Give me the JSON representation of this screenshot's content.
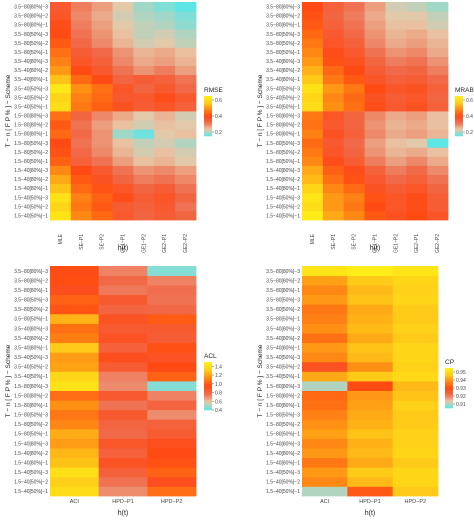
{
  "palette": [
    "#5ee6e6",
    "#e8c8a8",
    "#f06a4a",
    "#ff4a14",
    "#ff8a14",
    "#ffd018",
    "#fff018"
  ],
  "chart_data": [
    {
      "type": "heatmap",
      "xlabel": "h(t)",
      "ylabel": "T − n [ F P % ] − Scheme",
      "x_categories": [
        "MLE",
        "SE−P1",
        "SE−P2",
        "GE1−P1",
        "GE1−P2",
        "GE2−P1",
        "GE2−P2"
      ],
      "y_categories": [
        "1.5−40[50%]−1",
        "1.5−40[50%]−2",
        "1.5−40[50%]−3",
        "1.5−40[80%]−1",
        "1.5−40[80%]−2",
        "1.5−40[80%]−3",
        "1.5−80[50%]−1",
        "1.5−80[50%]−2",
        "1.5−80[50%]−3",
        "1.5−80[80%]−1",
        "1.5−80[80%]−2",
        "1.5−80[80%]−3",
        "3.5−40[50%]−1",
        "3.5−40[50%]−2",
        "3.5−40[50%]−3",
        "3.5−40[80%]−1",
        "3.5−40[80%]−2",
        "3.5−40[80%]−3",
        "3.5−80[50%]−1",
        "3.5−80[50%]−2",
        "3.5−80[50%]−3",
        "3.5−80[80%]−1",
        "3.5−80[80%]−2",
        "3.5−80[80%]−3"
      ],
      "legend": {
        "title": "RMSE",
        "min": 0.15,
        "max": 0.65,
        "ticks": [
          0.2,
          0.4,
          0.6
        ]
      },
      "values": [
        [
          0.62,
          0.48,
          0.44,
          0.36,
          0.33,
          0.35,
          0.33
        ],
        [
          0.58,
          0.46,
          0.42,
          0.35,
          0.34,
          0.36,
          0.31
        ],
        [
          0.61,
          0.47,
          0.43,
          0.39,
          0.35,
          0.37,
          0.33
        ],
        [
          0.55,
          0.44,
          0.41,
          0.37,
          0.33,
          0.35,
          0.31
        ],
        [
          0.52,
          0.42,
          0.38,
          0.33,
          0.3,
          0.31,
          0.29
        ],
        [
          0.48,
          0.4,
          0.36,
          0.31,
          0.28,
          0.29,
          0.27
        ],
        [
          0.43,
          0.34,
          0.31,
          0.27,
          0.24,
          0.25,
          0.23
        ],
        [
          0.41,
          0.32,
          0.29,
          0.25,
          0.22,
          0.24,
          0.22
        ],
        [
          0.4,
          0.31,
          0.28,
          0.24,
          0.21,
          0.22,
          0.2
        ],
        [
          0.44,
          0.32,
          0.28,
          0.19,
          0.16,
          0.23,
          0.24
        ],
        [
          0.42,
          0.31,
          0.27,
          0.24,
          0.22,
          0.24,
          0.23
        ],
        [
          0.45,
          0.33,
          0.29,
          0.26,
          0.23,
          0.25,
          0.22
        ],
        [
          0.6,
          0.46,
          0.43,
          0.38,
          0.35,
          0.37,
          0.34
        ],
        [
          0.58,
          0.47,
          0.44,
          0.36,
          0.36,
          0.39,
          0.36
        ],
        [
          0.63,
          0.49,
          0.45,
          0.37,
          0.33,
          0.36,
          0.32
        ],
        [
          0.55,
          0.44,
          0.4,
          0.33,
          0.35,
          0.34,
          0.31
        ],
        [
          0.5,
          0.4,
          0.36,
          0.31,
          0.28,
          0.3,
          0.27
        ],
        [
          0.47,
          0.37,
          0.34,
          0.29,
          0.26,
          0.27,
          0.25
        ],
        [
          0.45,
          0.35,
          0.32,
          0.28,
          0.25,
          0.26,
          0.24
        ],
        [
          0.42,
          0.32,
          0.29,
          0.25,
          0.22,
          0.23,
          0.21
        ],
        [
          0.4,
          0.31,
          0.28,
          0.24,
          0.21,
          0.22,
          0.2
        ],
        [
          0.39,
          0.3,
          0.27,
          0.23,
          0.21,
          0.2,
          0.18
        ],
        [
          0.37,
          0.29,
          0.26,
          0.22,
          0.2,
          0.19,
          0.17
        ],
        [
          0.36,
          0.3,
          0.27,
          0.23,
          0.19,
          0.17,
          0.15
        ]
      ]
    },
    {
      "type": "heatmap",
      "xlabel": "h(t)",
      "ylabel": "T − n [ F P % ] − Scheme",
      "x_categories": [
        "MLE",
        "SE−P1",
        "SE−P2",
        "GE1−P1",
        "GE1−P2",
        "GE2−P1",
        "GE2−P2"
      ],
      "y_categories": [
        "1.5−40[50%]−1",
        "1.5−40[50%]−2",
        "1.5−40[50%]−3",
        "1.5−40[80%]−1",
        "1.5−40[80%]−2",
        "1.5−40[80%]−3",
        "1.5−80[50%]−1",
        "1.5−80[50%]−2",
        "1.5−80[50%]−3",
        "1.5−80[80%]−1",
        "1.5−80[80%]−2",
        "1.5−80[80%]−3",
        "3.5−40[50%]−1",
        "3.5−40[50%]−2",
        "3.5−40[50%]−3",
        "3.5−40[80%]−1",
        "3.5−40[80%]−2",
        "3.5−40[80%]−3",
        "3.5−80[50%]−1",
        "3.5−80[50%]−2",
        "3.5−80[50%]−3",
        "3.5−80[80%]−1",
        "3.5−80[80%]−2",
        "3.5−80[80%]−3"
      ],
      "legend": {
        "title": "MRAB",
        "min": 0.15,
        "max": 0.65,
        "ticks": [
          0.2,
          0.4,
          0.6
        ]
      },
      "values": [
        [
          0.64,
          0.52,
          0.48,
          0.42,
          0.38,
          0.4,
          0.37
        ],
        [
          0.6,
          0.5,
          0.46,
          0.4,
          0.37,
          0.39,
          0.35
        ],
        [
          0.62,
          0.5,
          0.47,
          0.41,
          0.37,
          0.39,
          0.35
        ],
        [
          0.58,
          0.48,
          0.44,
          0.38,
          0.35,
          0.37,
          0.33
        ],
        [
          0.54,
          0.45,
          0.41,
          0.36,
          0.32,
          0.34,
          0.31
        ],
        [
          0.52,
          0.43,
          0.39,
          0.34,
          0.3,
          0.32,
          0.29
        ],
        [
          0.48,
          0.39,
          0.35,
          0.3,
          0.27,
          0.29,
          0.26
        ],
        [
          0.46,
          0.37,
          0.33,
          0.28,
          0.25,
          0.26,
          0.24
        ],
        [
          0.44,
          0.36,
          0.32,
          0.27,
          0.24,
          0.23,
          0.15
        ],
        [
          0.47,
          0.38,
          0.34,
          0.29,
          0.26,
          0.27,
          0.25
        ],
        [
          0.45,
          0.36,
          0.33,
          0.28,
          0.25,
          0.26,
          0.24
        ],
        [
          0.46,
          0.37,
          0.33,
          0.29,
          0.26,
          0.27,
          0.24
        ],
        [
          0.6,
          0.49,
          0.45,
          0.39,
          0.36,
          0.38,
          0.34
        ],
        [
          0.58,
          0.48,
          0.44,
          0.38,
          0.35,
          0.37,
          0.33
        ],
        [
          0.61,
          0.5,
          0.46,
          0.4,
          0.37,
          0.38,
          0.34
        ],
        [
          0.56,
          0.46,
          0.42,
          0.37,
          0.34,
          0.35,
          0.32
        ],
        [
          0.53,
          0.44,
          0.4,
          0.35,
          0.32,
          0.33,
          0.3
        ],
        [
          0.5,
          0.41,
          0.38,
          0.33,
          0.3,
          0.31,
          0.28
        ],
        [
          0.48,
          0.39,
          0.36,
          0.31,
          0.28,
          0.29,
          0.26
        ],
        [
          0.46,
          0.37,
          0.34,
          0.29,
          0.26,
          0.27,
          0.25
        ],
        [
          0.44,
          0.36,
          0.32,
          0.28,
          0.25,
          0.26,
          0.24
        ],
        [
          0.42,
          0.34,
          0.31,
          0.27,
          0.24,
          0.24,
          0.22
        ],
        [
          0.41,
          0.33,
          0.3,
          0.26,
          0.23,
          0.23,
          0.21
        ],
        [
          0.4,
          0.34,
          0.31,
          0.27,
          0.22,
          0.21,
          0.19
        ]
      ]
    },
    {
      "type": "heatmap",
      "xlabel": "h(t)",
      "ylabel": "T − n [ F P % ] − Scheme",
      "x_categories": [
        "ACI",
        "HPD−P1",
        "HPD−P2"
      ],
      "y_categories": [
        "1.5−40[50%]−1",
        "1.5−40[50%]−2",
        "1.5−40[50%]−3",
        "1.5−40[80%]−1",
        "1.5−40[80%]−2",
        "1.5−40[80%]−3",
        "1.5−80[50%]−1",
        "1.5−80[50%]−2",
        "1.5−80[50%]−3",
        "1.5−80[80%]−1",
        "1.5−80[80%]−2",
        "1.5−80[80%]−3",
        "3.5−40[50%]−1",
        "3.5−40[50%]−2",
        "3.5−40[50%]−3",
        "3.5−40[80%]−1",
        "3.5−40[80%]−2",
        "3.5−40[80%]−3",
        "3.5−80[50%]−1",
        "3.5−80[50%]−2",
        "3.5−80[50%]−3",
        "3.5−80[80%]−1",
        "3.5−80[80%]−2",
        "3.5−80[80%]−3"
      ],
      "legend": {
        "title": "ACL",
        "min": 0.4,
        "max": 1.5,
        "ticks": [
          0.4,
          0.6,
          0.8,
          1.0,
          1.2,
          1.4
        ]
      },
      "values": [
        [
          1.38,
          0.7,
          1.05
        ],
        [
          1.32,
          0.75,
          0.92
        ],
        [
          1.4,
          0.82,
          1.02
        ],
        [
          1.28,
          0.9,
          0.97
        ],
        [
          1.25,
          0.82,
          0.95
        ],
        [
          1.18,
          0.88,
          0.92
        ],
        [
          1.22,
          0.78,
          0.85
        ],
        [
          1.12,
          0.8,
          0.82
        ],
        [
          1.08,
          0.86,
          0.7
        ],
        [
          1.15,
          0.75,
          0.8
        ],
        [
          1.05,
          0.86,
          0.72
        ],
        [
          1.42,
          0.7,
          0.45
        ],
        [
          1.35,
          0.72,
          1.02
        ],
        [
          1.2,
          0.85,
          0.95
        ],
        [
          1.18,
          0.92,
          0.9
        ],
        [
          1.3,
          0.82,
          0.97
        ],
        [
          1.1,
          0.9,
          0.84
        ],
        [
          1.06,
          0.86,
          0.86
        ],
        [
          1.24,
          0.9,
          1.0
        ],
        [
          0.98,
          0.8,
          0.78
        ],
        [
          1.02,
          0.86,
          0.75
        ],
        [
          0.92,
          0.74,
          0.76
        ],
        [
          0.96,
          0.78,
          0.72
        ],
        [
          0.94,
          0.72,
          0.45
        ]
      ]
    },
    {
      "type": "heatmap",
      "xlabel": "h(t)",
      "ylabel": "T − n [ F P % ] − Scheme",
      "x_categories": [
        "ACI",
        "HPD−P1",
        "HPD−P2"
      ],
      "y_categories": [
        "1.5−40[50%]−1",
        "1.5−40[50%]−2",
        "1.5−40[50%]−3",
        "1.5−40[80%]−1",
        "1.5−40[80%]−2",
        "1.5−40[80%]−3",
        "1.5−80[50%]−1",
        "1.5−80[50%]−2",
        "1.5−80[50%]−3",
        "1.5−80[80%]−1",
        "1.5−80[80%]−2",
        "1.5−80[80%]−3",
        "3.5−40[50%]−1",
        "3.5−40[50%]−2",
        "3.5−40[50%]−3",
        "3.5−40[80%]−1",
        "3.5−40[80%]−2",
        "3.5−40[80%]−3",
        "3.5−80[50%]−1",
        "3.5−80[50%]−2",
        "3.5−80[50%]−3",
        "3.5−80[80%]−1",
        "3.5−80[80%]−2",
        "3.5−80[80%]−3"
      ],
      "legend": {
        "title": "CP",
        "min": 0.905,
        "max": 0.955,
        "ticks": [
          0.91,
          0.92,
          0.93,
          0.94,
          0.95
        ]
      },
      "values": [
        [
          0.91,
          0.932,
          0.946
        ],
        [
          0.938,
          0.944,
          0.948
        ],
        [
          0.94,
          0.946,
          0.948
        ],
        [
          0.936,
          0.942,
          0.946
        ],
        [
          0.94,
          0.944,
          0.948
        ],
        [
          0.938,
          0.943,
          0.947
        ],
        [
          0.941,
          0.945,
          0.947
        ],
        [
          0.939,
          0.943,
          0.946
        ],
        [
          0.937,
          0.942,
          0.946
        ],
        [
          0.935,
          0.941,
          0.947
        ],
        [
          0.934,
          0.94,
          0.945
        ],
        [
          0.91,
          0.93,
          0.944
        ],
        [
          0.942,
          0.946,
          0.949
        ],
        [
          0.928,
          0.939,
          0.947
        ],
        [
          0.938,
          0.944,
          0.948
        ],
        [
          0.94,
          0.945,
          0.948
        ],
        [
          0.935,
          0.942,
          0.946
        ],
        [
          0.939,
          0.944,
          0.947
        ],
        [
          0.937,
          0.943,
          0.946
        ],
        [
          0.936,
          0.942,
          0.946
        ],
        [
          0.94,
          0.945,
          0.948
        ],
        [
          0.938,
          0.944,
          0.947
        ],
        [
          0.941,
          0.946,
          0.948
        ],
        [
          0.952,
          0.954,
          0.952
        ]
      ]
    }
  ]
}
